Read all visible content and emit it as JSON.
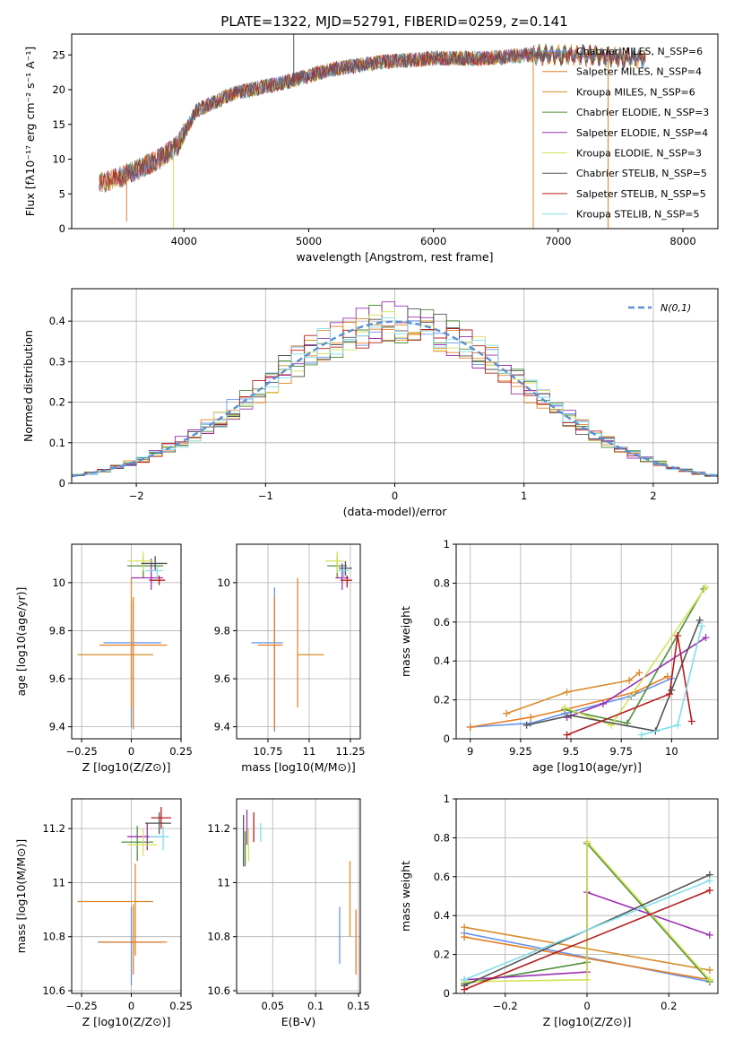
{
  "colors": [
    "#6495ED",
    "#E67E22",
    "#D98C2B",
    "#4F8F3A",
    "#9B30B0",
    "#D4E157",
    "#555555",
    "#B71C1C",
    "#80DEEA"
  ],
  "figure_title": "PLATE=1322, MJD=52791, FIBERID=0259, z=0.141",
  "chart_data": [
    {
      "id": "spectrum",
      "type": "line",
      "xlabel": "wavelength [Angstrom, rest frame]",
      "ylabel": "Flux [fλ10⁻¹⁷ erg cm⁻² s⁻¹ A⁻¹]",
      "xlim": [
        3100,
        8280
      ],
      "ylim": [
        0,
        28
      ],
      "xticks": [
        4000,
        5000,
        6000,
        7000,
        8000
      ],
      "yticks": [
        0,
        5,
        10,
        15,
        20,
        25
      ],
      "grid": false,
      "legend_position": "top-right",
      "legend": [
        "Chabrier MILES, N_SSP=6",
        "Salpeter MILES, N_SSP=4",
        "Kroupa MILES, N_SSP=6",
        "Chabrier ELODIE, N_SSP=3",
        "Salpeter ELODIE, N_SSP=4",
        "Kroupa ELODIE, N_SSP=3",
        "Chabrier STELIB, N_SSP=5",
        "Salpeter STELIB, N_SSP=5",
        "Kroupa STELIB, N_SSP=5"
      ],
      "continuum": {
        "x": [
          3300,
          3500,
          3800,
          3950,
          4100,
          4400,
          4800,
          5200,
          5600,
          6000,
          6400,
          6800,
          7200,
          7600
        ],
        "y": [
          6.5,
          7.5,
          10,
          12,
          17,
          19.5,
          21,
          23,
          24,
          24.5,
          24.5,
          25,
          25,
          24.5
        ]
      },
      "sharp_features": [
        {
          "x": 3540,
          "y": 1,
          "series": 1
        },
        {
          "x": 3915,
          "y": 0,
          "series": 5
        },
        {
          "x": 4880,
          "y": 28,
          "series": 6
        },
        {
          "x": 6800,
          "y": 0,
          "series": 2
        },
        {
          "x": 7400,
          "y": 0,
          "series": 1
        }
      ]
    },
    {
      "id": "residuals",
      "type": "step",
      "xlabel": "(data-model)/error",
      "ylabel": "Normed distribution",
      "xlim": [
        -2.5,
        2.5
      ],
      "ylim": [
        0,
        0.48
      ],
      "xticks": [
        -2,
        -1,
        0,
        1,
        2
      ],
      "yticks": [
        0.0,
        0.1,
        0.2,
        0.3,
        0.4
      ],
      "grid": true,
      "legend_position": "top-right",
      "legend": [
        "N(0,1)"
      ],
      "bin_width": 0.1,
      "gaussian": {
        "mean": 0,
        "sigma": 1
      }
    },
    {
      "id": "Z_vs_age",
      "type": "errorbar",
      "xlabel": "Z [log10(Z/Z⊙)]",
      "ylabel": "age  [log10(age/yr)]",
      "xlim": [
        -0.3,
        0.25
      ],
      "ylim": [
        9.35,
        10.16
      ],
      "xticks": [
        -0.25,
        0.0,
        0.25
      ],
      "yticks": [
        9.4,
        9.6,
        9.8,
        10.0
      ],
      "grid": true,
      "points": [
        {
          "s": 0,
          "x": 0.0,
          "y": 9.75,
          "xe": [
            0.14,
            0.15
          ],
          "ye": [
            0.35,
            0.17
          ]
        },
        {
          "s": 1,
          "x": 0.01,
          "y": 9.74,
          "xe": [
            0.17,
            0.17
          ],
          "ye": [
            0.35,
            0.2
          ]
        },
        {
          "s": 2,
          "x": 0.0,
          "y": 9.7,
          "xe": [
            0.27,
            0.11
          ],
          "ye": [
            0.22,
            0.32
          ]
        },
        {
          "s": 3,
          "x": 0.06,
          "y": 10.07,
          "xe": [
            0.08,
            0.1
          ],
          "ye": [
            0.05,
            0.04
          ]
        },
        {
          "s": 4,
          "x": 0.1,
          "y": 10.02,
          "xe": [
            0.1,
            0.06
          ],
          "ye": [
            0.05,
            0.08
          ]
        },
        {
          "s": 5,
          "x": 0.06,
          "y": 10.09,
          "xe": [
            0.08,
            0.05
          ],
          "ye": [
            0.04,
            0.04
          ]
        },
        {
          "s": 6,
          "x": 0.12,
          "y": 10.08,
          "xe": [
            0.07,
            0.06
          ],
          "ye": [
            0.03,
            0.03
          ]
        },
        {
          "s": 7,
          "x": 0.14,
          "y": 10.01,
          "xe": [
            0.05,
            0.03
          ],
          "ye": [
            0.02,
            0.02
          ]
        },
        {
          "s": 8,
          "x": 0.13,
          "y": 10.05,
          "xe": [
            0.06,
            0.03
          ],
          "ye": [
            0.03,
            0.02
          ]
        }
      ]
    },
    {
      "id": "mass_vs_age",
      "type": "errorbar",
      "xlabel": "mass [log10(M/M⊙)]",
      "ylabel": "",
      "xlim": [
        10.56,
        11.31
      ],
      "ylim": [
        9.35,
        10.16
      ],
      "xticks": [
        10.75,
        11.0,
        11.25
      ],
      "yticks": [
        9.4,
        9.6,
        9.8,
        10.0
      ],
      "grid": true,
      "points": [
        {
          "s": 0,
          "x": 10.79,
          "y": 9.75,
          "xe": [
            0.14,
            0.05
          ],
          "ye": [
            0.37,
            0.23
          ]
        },
        {
          "s": 1,
          "x": 10.79,
          "y": 9.74,
          "xe": [
            0.1,
            0.05
          ],
          "ye": [
            0.35,
            0.2
          ]
        },
        {
          "s": 2,
          "x": 10.93,
          "y": 9.7,
          "xe": [
            0.0,
            0.16
          ],
          "ye": [
            0.22,
            0.32
          ]
        },
        {
          "s": 3,
          "x": 11.17,
          "y": 10.07,
          "xe": [
            0.06,
            0.06
          ],
          "ye": [
            0.05,
            0.04
          ]
        },
        {
          "s": 4,
          "x": 11.2,
          "y": 10.02,
          "xe": [
            0.04,
            0.04
          ],
          "ye": [
            0.05,
            0.06
          ]
        },
        {
          "s": 5,
          "x": 11.17,
          "y": 10.09,
          "xe": [
            0.07,
            0.04
          ],
          "ye": [
            0.05,
            0.04
          ]
        },
        {
          "s": 6,
          "x": 11.22,
          "y": 10.06,
          "xe": [
            0.04,
            0.04
          ],
          "ye": [
            0.03,
            0.03
          ]
        },
        {
          "s": 7,
          "x": 11.23,
          "y": 10.01,
          "xe": [
            0.04,
            0.03
          ],
          "ye": [
            0.03,
            0.02
          ]
        },
        {
          "s": 8,
          "x": 11.21,
          "y": 10.05,
          "xe": [
            0.04,
            0.03
          ],
          "ye": [
            0.03,
            0.02
          ]
        }
      ]
    },
    {
      "id": "age_vs_weight",
      "type": "line",
      "xlabel": "age  [log10(age/yr)]",
      "ylabel": "mass weight",
      "xlim": [
        8.93,
        10.23
      ],
      "ylim": [
        0,
        1.0
      ],
      "xticks": [
        9.0,
        9.25,
        9.5,
        9.75,
        10.0
      ],
      "yticks": [
        0.0,
        0.2,
        0.4,
        0.6,
        0.8,
        1.0
      ],
      "grid": true,
      "series": [
        {
          "s": 0,
          "x": [
            9.0,
            9.3,
            9.47,
            9.8,
            10.0
          ],
          "y": [
            0.06,
            0.08,
            0.13,
            0.22,
            0.31
          ]
        },
        {
          "s": 1,
          "x": [
            9.0,
            9.3,
            9.47,
            9.82,
            9.98
          ],
          "y": [
            0.06,
            0.11,
            0.15,
            0.24,
            0.32
          ]
        },
        {
          "s": 2,
          "x": [
            9.18,
            9.48,
            9.79,
            9.84
          ],
          "y": [
            0.13,
            0.24,
            0.3,
            0.34
          ]
        },
        {
          "s": 3,
          "x": [
            9.47,
            9.78,
            10.16
          ],
          "y": [
            0.15,
            0.08,
            0.77
          ]
        },
        {
          "s": 4,
          "x": [
            9.48,
            9.66,
            10.17
          ],
          "y": [
            0.11,
            0.18,
            0.52
          ]
        },
        {
          "s": 5,
          "x": [
            9.47,
            9.7,
            10.17
          ],
          "y": [
            0.16,
            0.07,
            0.78
          ]
        },
        {
          "s": 6,
          "x": [
            9.28,
            9.5,
            9.92,
            10.0,
            10.14
          ],
          "y": [
            0.07,
            0.12,
            0.04,
            0.25,
            0.61
          ]
        },
        {
          "s": 7,
          "x": [
            9.48,
            9.99,
            10.03,
            10.1
          ],
          "y": [
            0.02,
            0.23,
            0.53,
            0.09
          ]
        },
        {
          "s": 8,
          "x": [
            9.85,
            10.03,
            10.15
          ],
          "y": [
            0.02,
            0.07,
            0.58
          ]
        }
      ]
    },
    {
      "id": "Z_vs_mass",
      "type": "errorbar",
      "xlabel": "Z [log10(Z/Z⊙)]",
      "ylabel": "mass [log10(M/M⊙)]",
      "xlim": [
        -0.3,
        0.25
      ],
      "ylim": [
        10.59,
        11.31
      ],
      "xticks": [
        -0.25,
        0.0,
        0.25
      ],
      "yticks": [
        10.6,
        10.8,
        11.0,
        11.2
      ],
      "grid": true,
      "points": [
        {
          "s": 0,
          "x": 0.0,
          "y": 10.78,
          "xe": [
            0.17,
            0.16
          ],
          "ye": [
            0.16,
            0.13
          ]
        },
        {
          "s": 1,
          "x": 0.01,
          "y": 10.78,
          "xe": [
            0.17,
            0.17
          ],
          "ye": [
            0.12,
            0.14
          ]
        },
        {
          "s": 2,
          "x": 0.02,
          "y": 10.93,
          "xe": [
            0.29,
            0.09
          ],
          "ye": [
            0.2,
            0.14
          ]
        },
        {
          "s": 3,
          "x": 0.03,
          "y": 11.15,
          "xe": [
            0.08,
            0.08
          ],
          "ye": [
            0.07,
            0.06
          ]
        },
        {
          "s": 4,
          "x": 0.08,
          "y": 11.17,
          "xe": [
            0.1,
            0.08
          ],
          "ye": [
            0.05,
            0.05
          ]
        },
        {
          "s": 5,
          "x": 0.06,
          "y": 11.14,
          "xe": [
            0.08,
            0.07
          ],
          "ye": [
            0.04,
            0.06
          ]
        },
        {
          "s": 6,
          "x": 0.14,
          "y": 11.22,
          "xe": [
            0.07,
            0.06
          ],
          "ye": [
            0.04,
            0.04
          ]
        },
        {
          "s": 7,
          "x": 0.15,
          "y": 11.24,
          "xe": [
            0.05,
            0.05
          ],
          "ye": [
            0.04,
            0.04
          ]
        },
        {
          "s": 8,
          "x": 0.16,
          "y": 11.17,
          "xe": [
            0.07,
            0.03
          ],
          "ye": [
            0.05,
            0.04
          ]
        }
      ]
    },
    {
      "id": "ebv_vs_mass",
      "type": "errorbar",
      "xlabel": "E(B-V)",
      "ylabel": "",
      "xlim": [
        0.008,
        0.152
      ],
      "ylim": [
        10.59,
        11.31
      ],
      "xticks": [
        0.05,
        0.1,
        0.15
      ],
      "yticks": [
        10.6,
        10.8,
        11.0,
        11.2
      ],
      "grid": true,
      "points": [
        {
          "s": 0,
          "x": 0.128,
          "y": 10.8,
          "xe": [
            0,
            0
          ],
          "ye": [
            0.1,
            0.11
          ]
        },
        {
          "s": 1,
          "x": 0.147,
          "y": 10.78,
          "xe": [
            0,
            0
          ],
          "ye": [
            0.12,
            0.12
          ]
        },
        {
          "s": 2,
          "x": 0.14,
          "y": 10.93,
          "xe": [
            0,
            0
          ],
          "ye": [
            0.13,
            0.15
          ]
        },
        {
          "s": 3,
          "x": 0.018,
          "y": 11.12,
          "xe": [
            0,
            0
          ],
          "ye": [
            0.06,
            0.07
          ]
        },
        {
          "s": 4,
          "x": 0.02,
          "y": 11.2,
          "xe": [
            0,
            0
          ],
          "ye": [
            0.06,
            0.07
          ]
        },
        {
          "s": 5,
          "x": 0.022,
          "y": 11.14,
          "xe": [
            0,
            0
          ],
          "ye": [
            0.06,
            0.06
          ]
        },
        {
          "s": 6,
          "x": 0.016,
          "y": 11.15,
          "xe": [
            0,
            0
          ],
          "ye": [
            0.09,
            0.1
          ]
        },
        {
          "s": 7,
          "x": 0.028,
          "y": 11.2,
          "xe": [
            0,
            0
          ],
          "ye": [
            0.05,
            0.06
          ]
        },
        {
          "s": 8,
          "x": 0.036,
          "y": 11.18,
          "xe": [
            0,
            0
          ],
          "ye": [
            0.03,
            0.04
          ]
        }
      ]
    },
    {
      "id": "Z_vs_weight",
      "type": "line",
      "xlabel": "Z [log10(Z/Z⊙)]",
      "ylabel": "mass weight",
      "xlim": [
        -0.32,
        0.32
      ],
      "ylim": [
        0,
        1.0
      ],
      "xticks": [
        -0.2,
        0.0,
        0.2
      ],
      "yticks": [
        0.0,
        0.2,
        0.4,
        0.6,
        0.8,
        1.0
      ],
      "grid": true,
      "series": [
        {
          "s": 0,
          "x": [
            -0.3,
            0.3
          ],
          "y": [
            0.31,
            0.06
          ]
        },
        {
          "s": 1,
          "x": [
            -0.3,
            0.3
          ],
          "y": [
            0.29,
            0.07
          ]
        },
        {
          "s": 2,
          "x": [
            -0.3,
            0.3
          ],
          "y": [
            0.34,
            0.12
          ]
        },
        {
          "s": 3,
          "x": [
            -0.3,
            0.0,
            0.0,
            0.3
          ],
          "y": [
            0.05,
            0.16,
            0.77,
            0.06
          ]
        },
        {
          "s": 4,
          "x": [
            -0.3,
            0.0,
            0.0,
            0.3
          ],
          "y": [
            0.07,
            0.11,
            0.52,
            0.3
          ]
        },
        {
          "s": 5,
          "x": [
            -0.3,
            0.0,
            0.0,
            0.3
          ],
          "y": [
            0.06,
            0.07,
            0.78,
            0.07
          ]
        },
        {
          "s": 6,
          "x": [
            -0.3,
            0.3
          ],
          "y": [
            0.04,
            0.61
          ]
        },
        {
          "s": 7,
          "x": [
            -0.3,
            0.3
          ],
          "y": [
            0.02,
            0.53
          ]
        },
        {
          "s": 8,
          "x": [
            -0.3,
            0.3
          ],
          "y": [
            0.07,
            0.58
          ]
        }
      ]
    }
  ]
}
